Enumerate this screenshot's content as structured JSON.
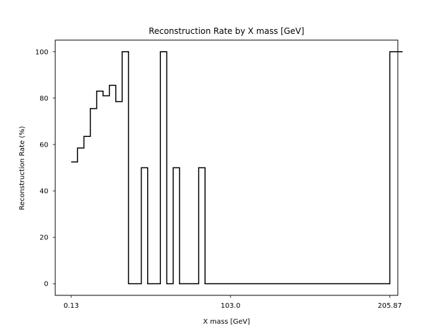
{
  "chart_data": {
    "type": "line",
    "drawstyle": "steps-post",
    "title": "Reconstruction Rate by X mass [GeV]",
    "xlabel": "X mass [GeV]",
    "ylabel": "Reconstruction Rate (%)",
    "xlim": [
      -10.16,
      211.01
    ],
    "ylim": [
      -5,
      105
    ],
    "xticks": [
      0.13,
      103.0,
      205.87
    ],
    "xtick_labels": [
      "0.13",
      "103.0",
      "205.87"
    ],
    "yticks": [
      0,
      20,
      40,
      60,
      80,
      100
    ],
    "ytick_labels": [
      "0",
      "20",
      "40",
      "60",
      "80",
      "100"
    ],
    "grid": false,
    "line_color": "#000000",
    "series": [
      {
        "x": [
          0.13,
          4.24,
          8.36,
          12.47,
          16.59,
          20.7,
          24.82,
          28.93,
          33.05,
          37.16,
          41.28,
          45.39,
          49.51,
          53.62,
          57.74,
          61.85,
          65.97,
          70.08,
          74.2,
          78.31,
          82.43,
          86.55,
          205.87
        ],
        "y": [
          52.5,
          58.5,
          63.5,
          75.5,
          83,
          81,
          85.5,
          78.5,
          100,
          0,
          0,
          50,
          0,
          0,
          100,
          0,
          50,
          0,
          0,
          0,
          50,
          0,
          100
        ]
      }
    ]
  }
}
